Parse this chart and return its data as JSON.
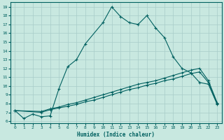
{
  "xlabel": "Humidex (Indice chaleur)",
  "bg_color": "#c8e8e0",
  "grid_color": "#a8ccc8",
  "line_color": "#006060",
  "xlim": [
    -0.5,
    23.5
  ],
  "ylim": [
    5.8,
    19.5
  ],
  "xticks": [
    0,
    1,
    2,
    3,
    4,
    5,
    6,
    7,
    8,
    9,
    10,
    11,
    12,
    13,
    14,
    15,
    16,
    17,
    18,
    19,
    20,
    21,
    22,
    23
  ],
  "yticks": [
    6,
    7,
    8,
    9,
    10,
    11,
    12,
    13,
    14,
    15,
    16,
    17,
    18,
    19
  ],
  "line1_x": [
    0,
    1,
    2,
    3,
    4,
    5,
    6,
    7,
    8,
    10,
    11,
    12,
    13,
    14,
    15,
    16,
    17,
    18,
    19,
    20,
    21,
    22,
    23
  ],
  "line1_y": [
    7.2,
    6.3,
    6.8,
    6.5,
    6.6,
    9.7,
    12.2,
    13.0,
    14.8,
    17.2,
    19.0,
    17.9,
    17.2,
    17.0,
    18.0,
    16.6,
    15.5,
    13.3,
    12.0,
    11.5,
    10.4,
    10.2,
    7.9
  ],
  "line2_x": [
    0,
    3,
    4,
    5,
    6,
    7,
    8,
    9,
    10,
    11,
    12,
    13,
    14,
    15,
    16,
    17,
    18,
    19,
    20,
    21,
    22,
    23
  ],
  "line2_y": [
    7.2,
    7.0,
    7.3,
    7.5,
    7.7,
    7.9,
    8.2,
    8.4,
    8.7,
    9.0,
    9.3,
    9.6,
    9.8,
    10.1,
    10.3,
    10.6,
    10.8,
    11.1,
    11.4,
    11.6,
    10.4,
    8.0
  ],
  "line3_x": [
    0,
    3,
    4,
    5,
    6,
    7,
    8,
    9,
    10,
    11,
    12,
    13,
    14,
    15,
    16,
    17,
    18,
    19,
    20,
    21,
    22,
    23
  ],
  "line3_y": [
    7.2,
    7.1,
    7.4,
    7.6,
    7.9,
    8.1,
    8.4,
    8.7,
    9.0,
    9.3,
    9.6,
    9.9,
    10.2,
    10.4,
    10.6,
    10.9,
    11.2,
    11.5,
    11.8,
    12.0,
    10.6,
    8.1
  ]
}
